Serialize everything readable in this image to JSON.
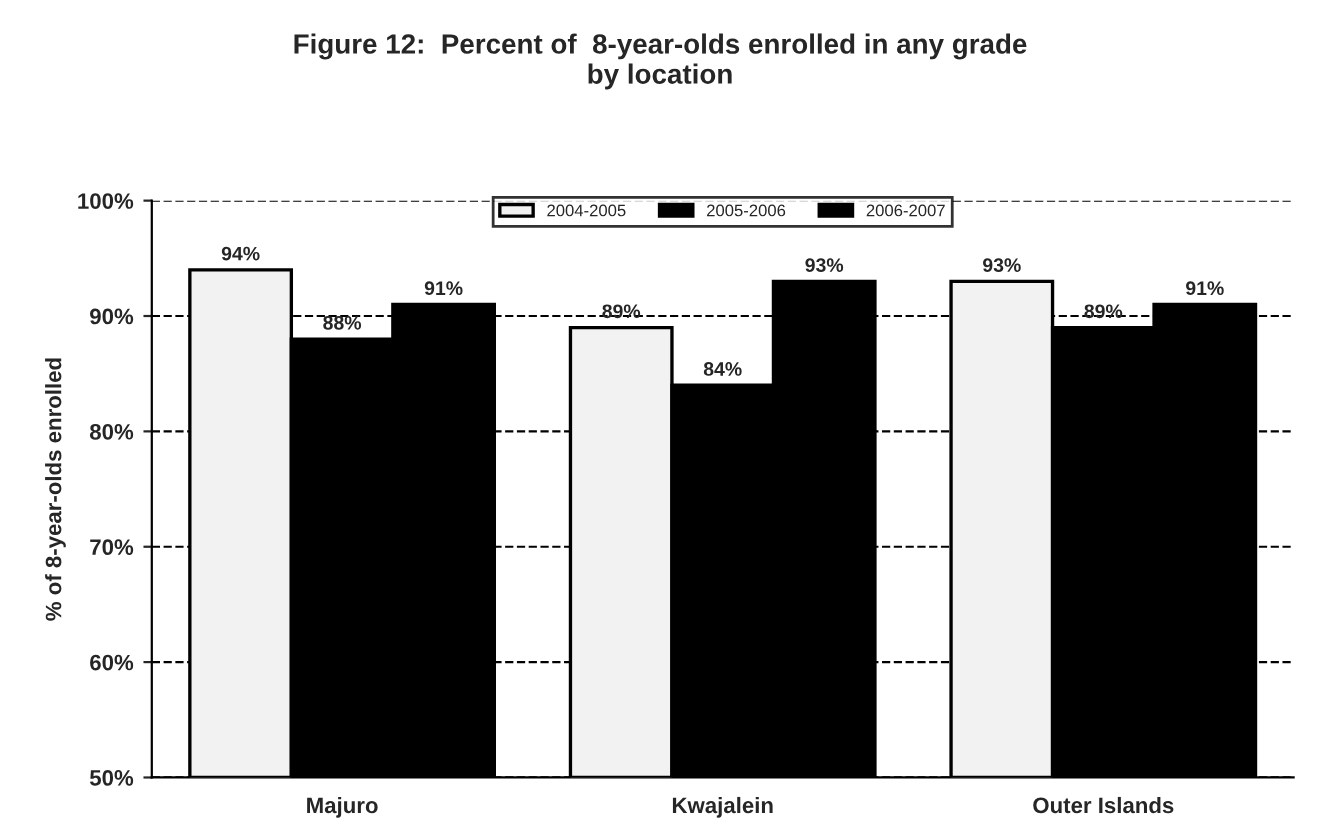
{
  "chart_data": {
    "type": "bar",
    "title": "Figure 12:  Percent of  8-year-olds enrolled in any grade\nby location",
    "ylabel": "% of 8-year-olds enrolled",
    "categories": [
      "Majuro",
      "Kwajalein",
      "Outer Islands"
    ],
    "series": [
      {
        "name": "2004-2005",
        "color": "#f2f2f2",
        "values": [
          94,
          89,
          93
        ],
        "value_labels": [
          "94%",
          "89%",
          "93%"
        ]
      },
      {
        "name": "2005-2006",
        "color": "#000000",
        "values": [
          88,
          84,
          89
        ],
        "value_labels": [
          "88%",
          "84%",
          "89%"
        ]
      },
      {
        "name": "2006-2007",
        "color": "#000000",
        "values": [
          91,
          93,
          91
        ],
        "value_labels": [
          "91%",
          "93%",
          "91%"
        ]
      }
    ],
    "ylim": [
      50,
      100
    ],
    "yticks": [
      {
        "value": 50,
        "label": "50%"
      },
      {
        "value": 60,
        "label": "60%"
      },
      {
        "value": 70,
        "label": "70%"
      },
      {
        "value": 80,
        "label": "80%"
      },
      {
        "value": 90,
        "label": "90%"
      },
      {
        "value": 100,
        "label": "100%"
      }
    ],
    "grid": "y",
    "legend": "top"
  }
}
